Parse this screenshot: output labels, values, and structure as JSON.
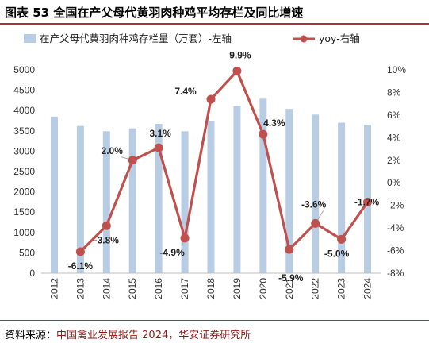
{
  "header": {
    "title": "图表 53 全国在产父母代黄羽肉种鸡平均存栏及同比增速"
  },
  "footer": {
    "source_prefix": "资料来源：",
    "source_text": "中国禽业发展报告 2024，华安证券研究所"
  },
  "colors": {
    "bar": "#b8cce4",
    "line": "#c0504d",
    "rule": "#b03030",
    "leader": "#a6a6a6"
  },
  "chart_data": {
    "type": "bar",
    "categories": [
      "2012",
      "2013",
      "2014",
      "2015",
      "2016",
      "2017",
      "2018",
      "2019",
      "2020",
      "2021",
      "2022",
      "2023",
      "2024"
    ],
    "series": [
      {
        "name": "在产父母代黄羽肉种鸡存栏量（万套）-左轴",
        "type": "bar",
        "axis": "left",
        "values": [
          3850,
          3620,
          3490,
          3560,
          3670,
          3490,
          3750,
          4110,
          4290,
          4040,
          3900,
          3700,
          3640
        ]
      },
      {
        "name": "yoy-右轴",
        "type": "line",
        "axis": "right",
        "unit": "%",
        "x": [
          "2013",
          "2014",
          "2015",
          "2016",
          "2017",
          "2018",
          "2019",
          "2020",
          "2021",
          "2022",
          "2023",
          "2024"
        ],
        "values": [
          -6.1,
          -3.8,
          2.0,
          3.1,
          -4.9,
          7.4,
          9.9,
          4.3,
          -5.9,
          -3.6,
          -5.0,
          -1.7
        ],
        "labels": [
          "-6.1%",
          "-3.8%",
          "2.0%",
          "3.1%",
          "-4.9%",
          "7.4%",
          "9.9%",
          "4.3%",
          "-5.9%",
          "-3.6%",
          "-5.0%",
          "-1.7%"
        ]
      }
    ],
    "y_left": {
      "min": 0,
      "max": 5000,
      "step": 500,
      "ticks": [
        "0",
        "500",
        "1000",
        "1500",
        "2000",
        "2500",
        "3000",
        "3500",
        "4000",
        "4500",
        "5000"
      ]
    },
    "y_right": {
      "min": -8,
      "max": 10,
      "step": 2,
      "ticks": [
        "-8%",
        "-6%",
        "-4%",
        "-2%",
        "0%",
        "2%",
        "4%",
        "6%",
        "8%",
        "10%"
      ]
    },
    "legend": {
      "position": "top"
    },
    "grid": false
  }
}
